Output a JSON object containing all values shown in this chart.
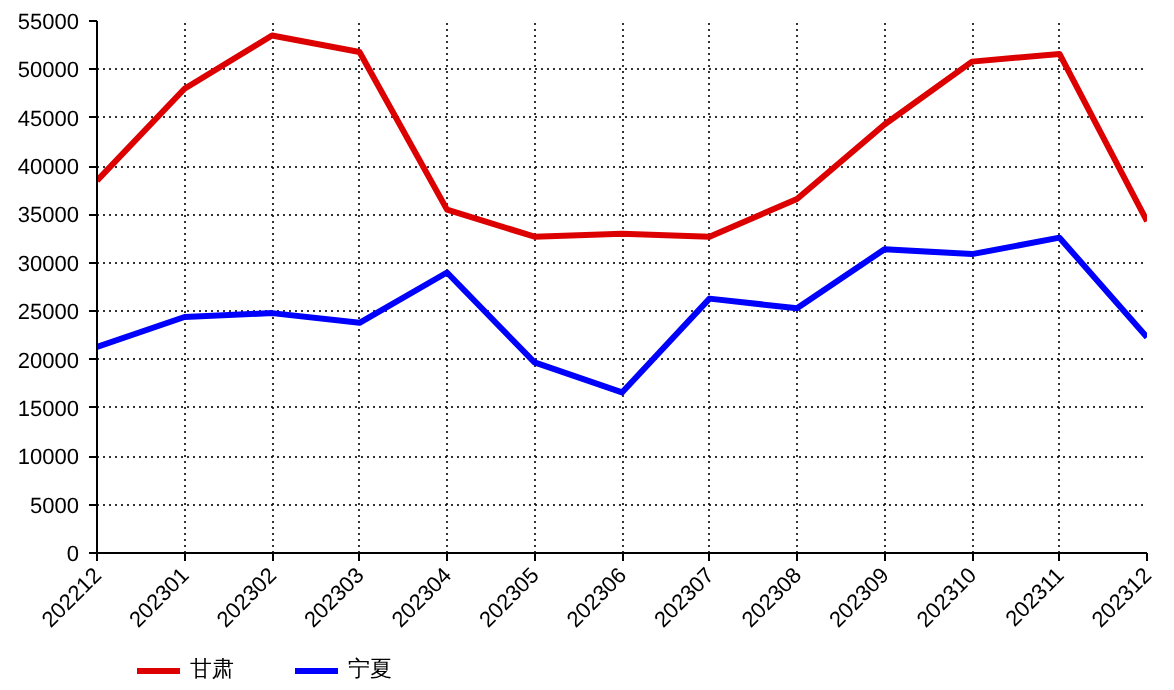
{
  "chart_data": {
    "type": "line",
    "categories": [
      "202212",
      "202301",
      "202302",
      "202303",
      "202304",
      "202305",
      "202306",
      "202307",
      "202308",
      "202309",
      "202310",
      "202311",
      "202312"
    ],
    "series": [
      {
        "name": "甘肃",
        "color": "#dd0000",
        "values": [
          38500,
          48000,
          53500,
          51800,
          35500,
          32700,
          33000,
          32700,
          36600,
          44300,
          50800,
          51600,
          34300
        ]
      },
      {
        "name": "宁夏",
        "color": "#0000ff",
        "values": [
          21300,
          24400,
          24800,
          23800,
          29000,
          19700,
          16600,
          26300,
          25300,
          31400,
          30900,
          32600,
          22300
        ]
      }
    ],
    "ylim": [
      0,
      55000
    ],
    "yticks": [
      0,
      5000,
      10000,
      15000,
      20000,
      25000,
      30000,
      35000,
      40000,
      45000,
      50000,
      55000
    ],
    "grid": true,
    "legend": "bottom left",
    "marker": "none",
    "line_style": "solid"
  }
}
